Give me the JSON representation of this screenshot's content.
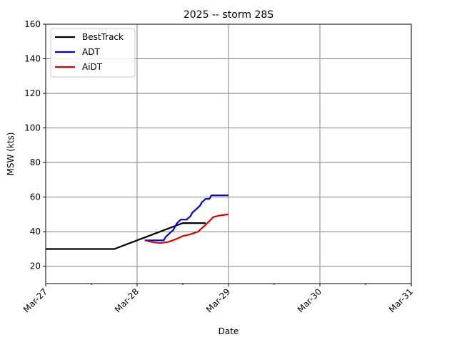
{
  "chart_data": {
    "type": "line",
    "title": "2025 -- storm 28S",
    "xlabel": "Date",
    "ylabel": "MSW (kts)",
    "xlim": [
      "2025-03-27T00:00",
      "2025-03-31T00:00"
    ],
    "ylim": [
      10,
      160
    ],
    "grid": true,
    "legend_position": "top-left",
    "x_tick_values": [
      "2025-03-27T00:00",
      "2025-03-28T00:00",
      "2025-03-29T00:00",
      "2025-03-30T00:00",
      "2025-03-31T00:00"
    ],
    "x_tick_labels": [
      "Mar-27",
      "Mar-28",
      "Mar-29",
      "Mar-30",
      "Mar-31"
    ],
    "y_ticks": [
      20,
      40,
      60,
      80,
      100,
      120,
      140,
      160
    ],
    "series": [
      {
        "name": "BestTrack",
        "color": "#000000",
        "points": [
          [
            "2025-03-27T00:00",
            30
          ],
          [
            "2025-03-27T18:00",
            30
          ],
          [
            "2025-03-28T00:00",
            35
          ],
          [
            "2025-03-28T06:00",
            40
          ],
          [
            "2025-03-28T12:00",
            45
          ],
          [
            "2025-03-28T18:00",
            45
          ]
        ]
      },
      {
        "name": "ADT",
        "color": "#0000cc",
        "points": [
          [
            "2025-03-28T02:00",
            35
          ],
          [
            "2025-03-28T07:00",
            35
          ],
          [
            "2025-03-28T07:30",
            37
          ],
          [
            "2025-03-28T08:30",
            39
          ],
          [
            "2025-03-28T09:30",
            41
          ],
          [
            "2025-03-28T10:00",
            43
          ],
          [
            "2025-03-28T10:30",
            45
          ],
          [
            "2025-03-28T11:30",
            47
          ],
          [
            "2025-03-28T13:00",
            47
          ],
          [
            "2025-03-28T14:00",
            49
          ],
          [
            "2025-03-28T14:30",
            51
          ],
          [
            "2025-03-28T15:30",
            53
          ],
          [
            "2025-03-28T16:30",
            55
          ],
          [
            "2025-03-28T17:00",
            57
          ],
          [
            "2025-03-28T18:00",
            59
          ],
          [
            "2025-03-28T19:00",
            59
          ],
          [
            "2025-03-28T19:30",
            61
          ],
          [
            "2025-03-29T00:00",
            61
          ]
        ]
      },
      {
        "name": "AiDT",
        "color": "#dd0000",
        "points": [
          [
            "2025-03-28T02:00",
            35
          ],
          [
            "2025-03-28T04:00",
            34
          ],
          [
            "2025-03-28T06:00",
            33.5
          ],
          [
            "2025-03-28T08:00",
            34
          ],
          [
            "2025-03-28T10:00",
            35.5
          ],
          [
            "2025-03-28T12:00",
            37.5
          ],
          [
            "2025-03-28T14:00",
            38.5
          ],
          [
            "2025-03-28T16:00",
            40
          ],
          [
            "2025-03-28T18:00",
            44
          ],
          [
            "2025-03-28T20:00",
            48.5
          ],
          [
            "2025-03-28T22:00",
            49.5
          ],
          [
            "2025-03-29T00:00",
            50
          ]
        ]
      }
    ]
  }
}
